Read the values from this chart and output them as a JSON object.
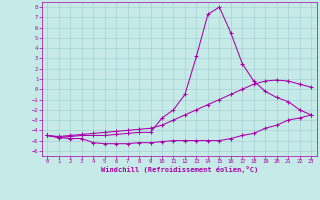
{
  "xlabel": "Windchill (Refroidissement éolien,°C)",
  "background_color": "#c5eae7",
  "grid_color": "#9ecece",
  "line_color": "#aa00aa",
  "x_values": [
    0,
    1,
    2,
    3,
    4,
    5,
    6,
    7,
    8,
    9,
    10,
    11,
    12,
    13,
    14,
    15,
    16,
    17,
    18,
    19,
    20,
    21,
    22,
    23
  ],
  "line1_y": [
    -4.5,
    -4.7,
    -4.8,
    -4.8,
    -5.2,
    -5.3,
    -5.3,
    -5.3,
    -5.2,
    -5.2,
    -5.1,
    -5.0,
    -5.0,
    -5.0,
    -5.0,
    -5.0,
    -4.8,
    -4.5,
    -4.3,
    -3.8,
    -3.5,
    -3.0,
    -2.8,
    -2.5
  ],
  "line2_y": [
    -4.5,
    -4.7,
    -4.6,
    -4.5,
    -4.5,
    -4.5,
    -4.4,
    -4.3,
    -4.2,
    -4.2,
    -2.8,
    -2.0,
    -0.5,
    3.2,
    7.3,
    8.0,
    5.5,
    2.5,
    0.8,
    -0.2,
    -0.8,
    -1.2,
    -2.0,
    -2.5
  ],
  "line3_y": [
    -4.5,
    -4.6,
    -4.5,
    -4.4,
    -4.3,
    -4.2,
    -4.1,
    -4.0,
    -3.9,
    -3.8,
    -3.5,
    -3.0,
    -2.5,
    -2.0,
    -1.5,
    -1.0,
    -0.5,
    0.0,
    0.5,
    0.8,
    0.9,
    0.8,
    0.5,
    0.2
  ],
  "ylim": [
    -6.5,
    8.5
  ],
  "xlim": [
    -0.5,
    23.5
  ],
  "yticks": [
    8,
    7,
    6,
    5,
    4,
    3,
    2,
    1,
    0,
    -1,
    -2,
    -3,
    -4,
    -5,
    -6
  ],
  "xticks": [
    0,
    1,
    2,
    3,
    4,
    5,
    6,
    7,
    8,
    9,
    10,
    11,
    12,
    13,
    14,
    15,
    16,
    17,
    18,
    19,
    20,
    21,
    22,
    23
  ],
  "figsize": [
    3.2,
    2.0
  ],
  "dpi": 100
}
